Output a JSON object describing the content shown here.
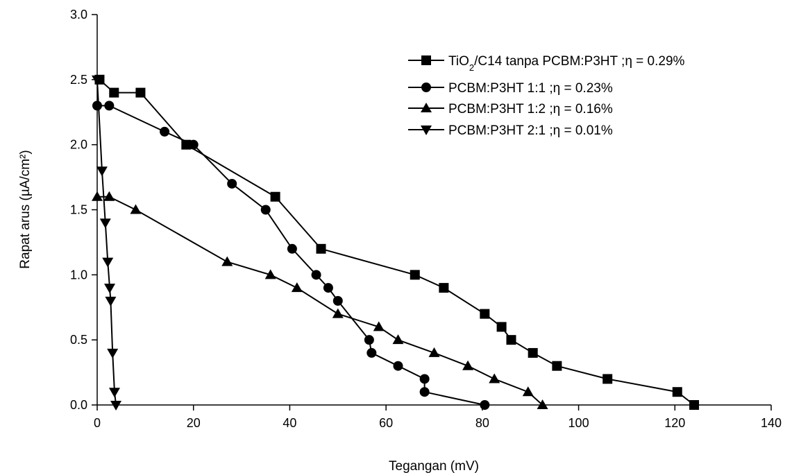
{
  "chart_data": {
    "type": "line",
    "title": "",
    "xlabel": "Tegangan (mV)",
    "ylabel": "Rapat arus (µA/cm²)",
    "xlim": [
      0,
      140
    ],
    "ylim": [
      0,
      3.0
    ],
    "x_ticks": [
      0,
      20,
      40,
      60,
      80,
      100,
      120,
      140
    ],
    "y_ticks": [
      "0.0",
      "0.5",
      "1.0",
      "1.5",
      "2.0",
      "2.5",
      "3.0"
    ],
    "grid": false,
    "legend_position": "top-right",
    "series": [
      {
        "name": "TiO₂/C14 tanpa PCBM:P3HT ;η = 0.29%",
        "name_parts": {
          "pre": "TiO",
          "sub": "2",
          "post": "/C14 tanpa PCBM:P3HT ;η = 0.29%"
        },
        "marker": "square",
        "x": [
          0.5,
          3.5,
          9,
          18.5,
          37,
          46.5,
          66,
          72,
          80.5,
          84,
          86,
          90.5,
          95.5,
          106,
          120.5,
          124
        ],
        "y": [
          2.5,
          2.4,
          2.4,
          2.0,
          1.6,
          1.2,
          1.0,
          0.9,
          0.7,
          0.6,
          0.5,
          0.4,
          0.3,
          0.2,
          0.1,
          0.0
        ]
      },
      {
        "name": "PCBM:P3HT 1:1 ;η = 0.23%",
        "marker": "circle",
        "x": [
          0,
          2.5,
          14,
          20,
          28,
          35,
          40.5,
          45.5,
          48,
          50,
          56.5,
          57,
          62.5,
          68,
          68,
          80.5
        ],
        "y": [
          2.3,
          2.3,
          2.1,
          2.0,
          1.7,
          1.5,
          1.2,
          1.0,
          0.9,
          0.8,
          0.5,
          0.4,
          0.3,
          0.2,
          0.1,
          0.0
        ]
      },
      {
        "name": "PCBM:P3HT 1:2 ;η = 0.16%",
        "marker": "triangle-up",
        "x": [
          0,
          2.5,
          8,
          27,
          36,
          41.5,
          50,
          58.5,
          62.5,
          70,
          77,
          82.5,
          89.5,
          92.5
        ],
        "y": [
          1.6,
          1.6,
          1.5,
          1.1,
          1.0,
          0.9,
          0.7,
          0.6,
          0.5,
          0.4,
          0.3,
          0.2,
          0.1,
          0.0
        ]
      },
      {
        "name": "PCBM:P3HT 2:1 ;η = 0.01%",
        "marker": "triangle-down",
        "x": [
          0,
          1,
          1.7,
          2.2,
          2.6,
          2.8,
          3.2,
          3.6,
          3.9
        ],
        "y": [
          2.5,
          1.8,
          1.4,
          1.1,
          0.9,
          0.8,
          0.4,
          0.1,
          0.0
        ]
      }
    ]
  }
}
